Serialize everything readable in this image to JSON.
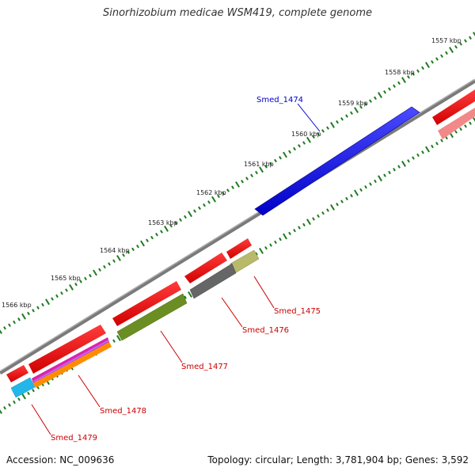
{
  "title": "Sinorhizobium medicae WSM419, complete genome",
  "footer": {
    "accession": "Accession: NC_009636",
    "stats": "Topology: circular; Length: 3,781,904 bp; Genes: 3,592"
  },
  "ruler": {
    "ticks": [
      "1557 kbp",
      "1558 kbp",
      "1559 kbp",
      "1560 kbp",
      "1561 kbp",
      "1562 kbp",
      "1563 kbp",
      "1564 kbp",
      "1565 kbp",
      "1566 kbp"
    ]
  },
  "genes": [
    {
      "id": "Smed_1474",
      "label": "Smed_1474",
      "color": "#0000ee",
      "label_color": "#0000cc"
    },
    {
      "id": "Smed_1475",
      "label": "Smed_1475",
      "color": "#b8b86a",
      "label_color": "#cc0000"
    },
    {
      "id": "Smed_1476",
      "label": "Smed_1476",
      "color": "#666666",
      "label_color": "#cc0000"
    },
    {
      "id": "Smed_1477",
      "label": "Smed_1477",
      "color": "#6b8e23",
      "label_color": "#cc0000"
    },
    {
      "id": "Smed_1478",
      "label": "Smed_1478",
      "color": "#ff8c00",
      "label_color": "#cc0000"
    },
    {
      "id": "Smed_1479",
      "label": "Smed_1479",
      "color": "#22b7e8",
      "label_color": "#cc0000"
    }
  ],
  "colors": {
    "backbone": "#777777",
    "tick": "#1e7a1e",
    "cds": "#ee0000",
    "cds_light": "#f08080",
    "magenta": "#dd22aa"
  }
}
